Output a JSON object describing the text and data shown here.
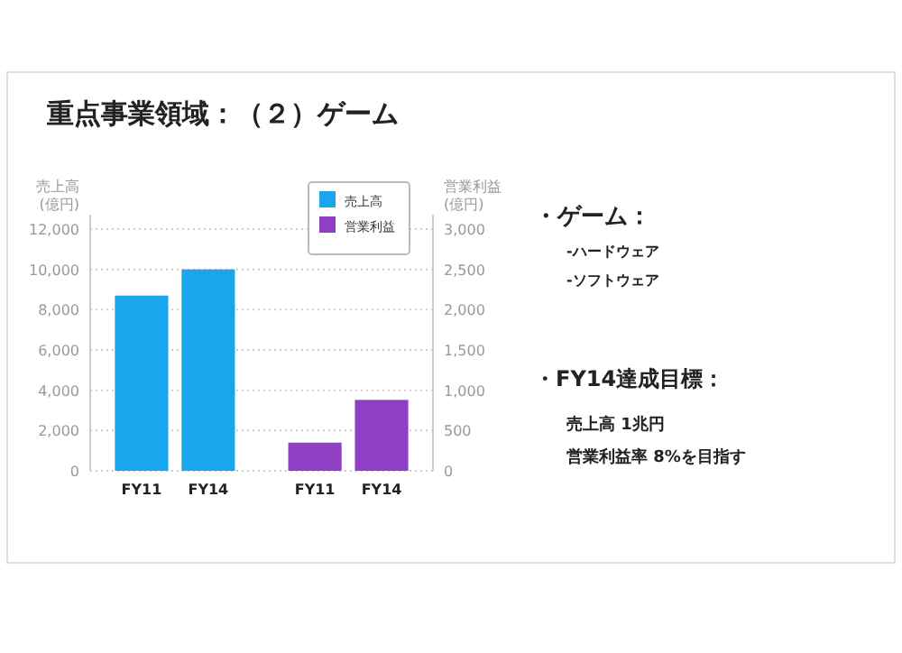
{
  "chart_data": {
    "type": "bar",
    "title": "重点事業領域：（２）ゲーム",
    "categories": [
      "FY11",
      "FY14",
      "FY11",
      "FY14"
    ],
    "series": [
      {
        "name": "売上高",
        "color": "#1aa6ec",
        "values": [
          8700,
          10000,
          null,
          null
        ]
      },
      {
        "name": "営業利益",
        "color": "#8e3fc4",
        "axis": "y2",
        "values": [
          null,
          null,
          350,
          880
        ]
      }
    ],
    "ylabel": "売上高\n(億円)",
    "y2label": "営業利益\n(億円)",
    "ylim": [
      0,
      12000
    ],
    "yticks": [
      {
        "value": 0,
        "label": "0"
      },
      {
        "value": 2000,
        "label": "2,000"
      },
      {
        "value": 4000,
        "label": "4,000"
      },
      {
        "value": 6000,
        "label": "6,000"
      },
      {
        "value": 8000,
        "label": "8,000"
      },
      {
        "value": 10000,
        "label": "10,000"
      },
      {
        "value": 12000,
        "label": "12,000"
      }
    ],
    "y2lim": [
      0,
      3000
    ],
    "y2ticks": [
      {
        "value": 0,
        "label": "0"
      },
      {
        "value": 500,
        "label": "500"
      },
      {
        "value": 1000,
        "label": "1,000"
      },
      {
        "value": 1500,
        "label": "1,500"
      },
      {
        "value": 2000,
        "label": "2,000"
      },
      {
        "value": 2500,
        "label": "2,500"
      },
      {
        "value": 3000,
        "label": "3,000"
      }
    ],
    "grid": "y",
    "legend": "top right",
    "annotations": [
      "・ゲーム：",
      "-ハードウェア",
      "-ソフトウェア",
      "・FY14達成目標：",
      "売上高 1兆円",
      "営業利益率 8%を目指す"
    ]
  }
}
